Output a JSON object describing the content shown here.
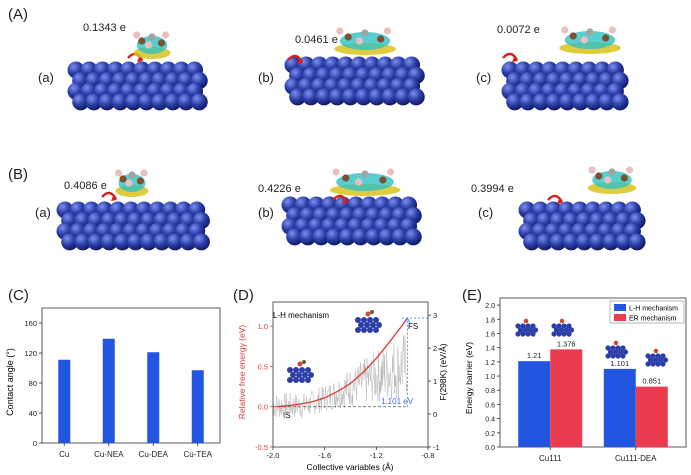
{
  "panels": {
    "A": {
      "label": "(A)",
      "subs": [
        "(a)",
        "(b)",
        "(c)"
      ],
      "charges": [
        "0.1343 e",
        "0.0461 e",
        "0.0072 e"
      ]
    },
    "B": {
      "label": "(B)",
      "subs": [
        "(a)",
        "(b)",
        "(c)"
      ],
      "charges": [
        "0.4086 e",
        "0.4226 e",
        "0.3994 e"
      ]
    },
    "C": {
      "label": "(C)"
    },
    "D": {
      "label": "(D)"
    },
    "E": {
      "label": "(E)"
    }
  },
  "colors": {
    "copper": "#2c3fa8",
    "bar_blue": "#2255e0",
    "bar_red": "#ea3b4f",
    "curve_red": "#e0393b",
    "noise_gray": "#b5b5b5",
    "dash_blue": "#3a6fd8"
  },
  "chart_data": [
    {
      "type": "bar",
      "panel": "C",
      "categories": [
        "Cu",
        "Cu-NEA",
        "Cu-DEA",
        "Cu-TEA"
      ],
      "values": [
        111,
        139,
        121,
        97
      ],
      "ylabel": "Contact angle (°)",
      "ylim": [
        0,
        180
      ],
      "yticks": [
        "0",
        "40",
        "80",
        "120",
        "160"
      ]
    },
    {
      "type": "line",
      "panel": "D",
      "annotation": "L-H mechanism",
      "xlabel": "Collective variables (Å)",
      "ylabel_left": "Relative free energy (eV)",
      "ylabel_right": "F(298K) (eV/Å)",
      "xlim": [
        -2.0,
        -0.8
      ],
      "ylim_left": [
        -0.5,
        1.3
      ],
      "ylim_right": [
        -1,
        3.4
      ],
      "xticks": [
        "-2.0",
        "-1.6",
        "-1.2",
        "-0.8"
      ],
      "yticks_left": [
        "-0.5",
        "0.0",
        "0.5",
        "1.0"
      ],
      "yticks_right": [
        "-1",
        "0",
        "1",
        "2",
        "3"
      ],
      "labels": {
        "is": "IS",
        "fs": "FS",
        "barrier": "1.101 eV"
      },
      "free_energy_curve": {
        "x": [
          -1.97,
          -1.9,
          -1.8,
          -1.7,
          -1.6,
          -1.5,
          -1.4,
          -1.3,
          -1.2,
          -1.1,
          -1.0,
          -0.96
        ],
        "y": [
          0.0,
          0.01,
          0.03,
          0.06,
          0.11,
          0.19,
          0.29,
          0.43,
          0.6,
          0.8,
          1.01,
          1.1
        ]
      }
    },
    {
      "type": "bar",
      "panel": "E",
      "categories": [
        "Cu111",
        "Cu111-DEA"
      ],
      "series": [
        {
          "name": "L-H mechanism",
          "values": [
            1.21,
            1.101
          ]
        },
        {
          "name": "ER mechanism",
          "values": [
            1.376,
            0.851
          ]
        }
      ],
      "value_labels": [
        [
          "1.21",
          "1.376"
        ],
        [
          "1.101",
          "0.851"
        ]
      ],
      "ylabel": "Energy barrier (eV)",
      "ylim": [
        0,
        2.1
      ],
      "yticks": [
        "0.0",
        "0.2",
        "0.4",
        "0.6",
        "0.8",
        "1.0",
        "1.2",
        "1.4",
        "1.6",
        "1.8",
        "2.0"
      ]
    }
  ]
}
